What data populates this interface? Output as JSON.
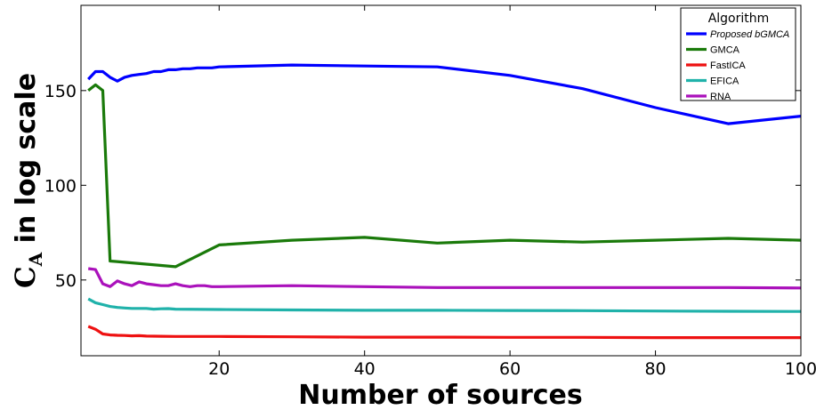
{
  "chart_data": {
    "type": "line",
    "xlabel": "Number of sources",
    "ylabel": {
      "symbol": "C",
      "subscript": "A",
      "rest": " in log scale"
    },
    "xlim": [
      1,
      100
    ],
    "ylim": [
      10,
      195
    ],
    "xticks": [
      20,
      40,
      60,
      80,
      100
    ],
    "yticks": [
      50,
      100,
      150
    ],
    "grid": false,
    "legend": {
      "title": "Algorithm",
      "placement": "top-right"
    },
    "series": [
      {
        "name": "Proposed bGMCA",
        "color": "#0000ff",
        "italic": true,
        "x": [
          2,
          3,
          4,
          5,
          6,
          7,
          8,
          9,
          10,
          11,
          12,
          13,
          14,
          15,
          16,
          17,
          18,
          19,
          20,
          30,
          40,
          50,
          60,
          70,
          80,
          90,
          100
        ],
        "y": [
          156,
          160,
          160,
          157,
          155,
          157,
          158,
          158.5,
          159,
          160,
          160,
          161,
          161,
          161.5,
          161.5,
          162,
          162,
          162,
          162.5,
          163.5,
          163,
          162.5,
          158,
          151,
          141,
          132.5,
          136.5
        ]
      },
      {
        "name": "GMCA",
        "color": "#1a7a0a",
        "italic": false,
        "x": [
          2,
          3,
          4,
          5,
          14,
          20,
          30,
          40,
          50,
          60,
          70,
          80,
          90,
          100
        ],
        "y": [
          150,
          153,
          150,
          60,
          57,
          68.5,
          71,
          72.5,
          69.5,
          71,
          70,
          71,
          72,
          71
        ]
      },
      {
        "name": "FastICA",
        "color": "#ee1111",
        "italic": false,
        "x": [
          2,
          3,
          4,
          5,
          6,
          7,
          8,
          9,
          10,
          12,
          14,
          16,
          20,
          30,
          40,
          50,
          60,
          70,
          80,
          90,
          100
        ],
        "y": [
          25.5,
          24,
          21.5,
          21,
          20.8,
          20.7,
          20.5,
          20.6,
          20.4,
          20.3,
          20.2,
          20.2,
          20.2,
          20,
          19.8,
          19.8,
          19.7,
          19.7,
          19.6,
          19.6,
          19.6
        ]
      },
      {
        "name": "EFICA",
        "color": "#20b2aa",
        "italic": false,
        "x": [
          2,
          3,
          4,
          5,
          6,
          7,
          8,
          9,
          10,
          11,
          12,
          13,
          14,
          20,
          30,
          40,
          50,
          60,
          70,
          80,
          90,
          100
        ],
        "y": [
          40,
          38,
          37,
          36,
          35.5,
          35.2,
          35,
          35,
          35,
          34.6,
          34.8,
          34.9,
          34.6,
          34.4,
          34.2,
          34,
          34,
          33.9,
          33.8,
          33.6,
          33.5,
          33.4
        ]
      },
      {
        "name": "RNA",
        "color": "#aa11bb",
        "italic": false,
        "x": [
          2,
          3,
          4,
          5,
          6,
          7,
          8,
          9,
          10,
          11,
          12,
          13,
          14,
          15,
          16,
          17,
          18,
          19,
          20,
          30,
          40,
          50,
          60,
          70,
          80,
          90,
          100
        ],
        "y": [
          56,
          55.5,
          48,
          46.5,
          49.5,
          48,
          47,
          49,
          48,
          47.5,
          47,
          47,
          48,
          47,
          46.5,
          47,
          47,
          46.5,
          46.5,
          47,
          46.5,
          46,
          46,
          46,
          46,
          46,
          45.8
        ]
      }
    ]
  }
}
